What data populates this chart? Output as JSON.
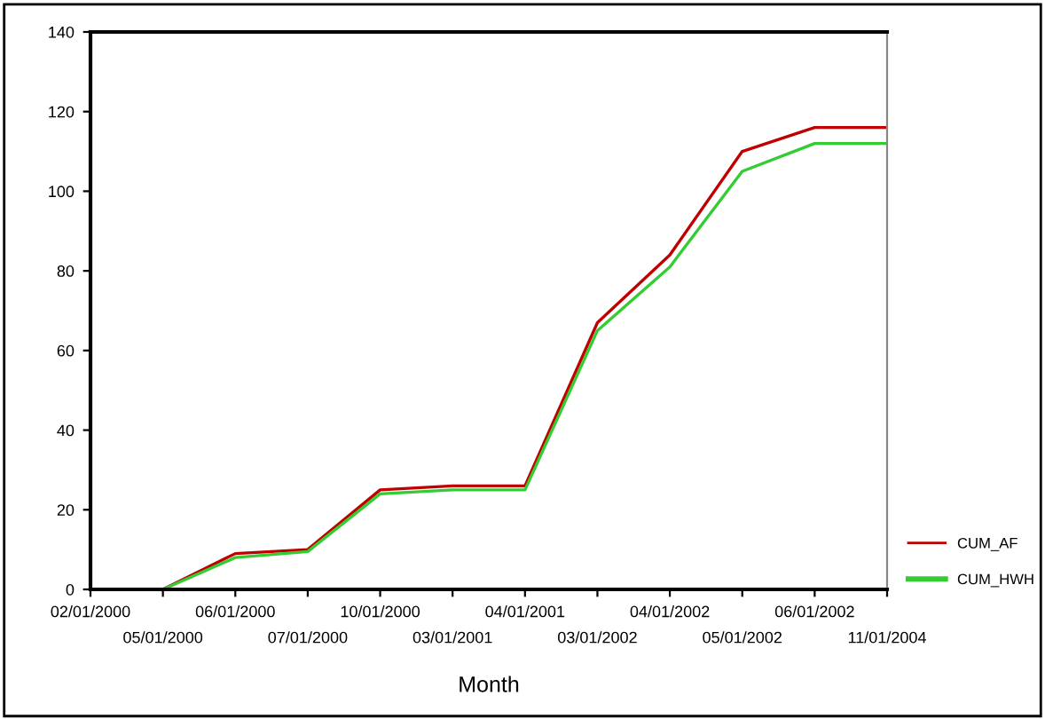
{
  "chart_data": {
    "type": "line",
    "xlabel": "Month",
    "categories": [
      "02/01/2000",
      "05/01/2000",
      "06/01/2000",
      "07/01/2000",
      "10/01/2000",
      "03/01/2001",
      "04/01/2001",
      "03/01/2002",
      "04/01/2002",
      "05/01/2002",
      "06/01/2002",
      "11/01/2004"
    ],
    "series": [
      {
        "name": "CUM_AF",
        "color": "#c00000",
        "values": [
          null,
          0,
          9,
          10,
          25,
          26,
          26,
          67,
          84,
          110,
          116,
          116
        ]
      },
      {
        "name": "CUM_HWH",
        "color": "#33cc33",
        "values": [
          null,
          0,
          8,
          9.5,
          24,
          25,
          25,
          65,
          81,
          105,
          112,
          112
        ]
      }
    ],
    "ylim": [
      0,
      140
    ],
    "yticks": [
      0,
      20,
      40,
      60,
      80,
      100,
      120,
      140
    ],
    "grid": false,
    "legend": "bottom right",
    "marker": "none",
    "line_style": "solid"
  }
}
